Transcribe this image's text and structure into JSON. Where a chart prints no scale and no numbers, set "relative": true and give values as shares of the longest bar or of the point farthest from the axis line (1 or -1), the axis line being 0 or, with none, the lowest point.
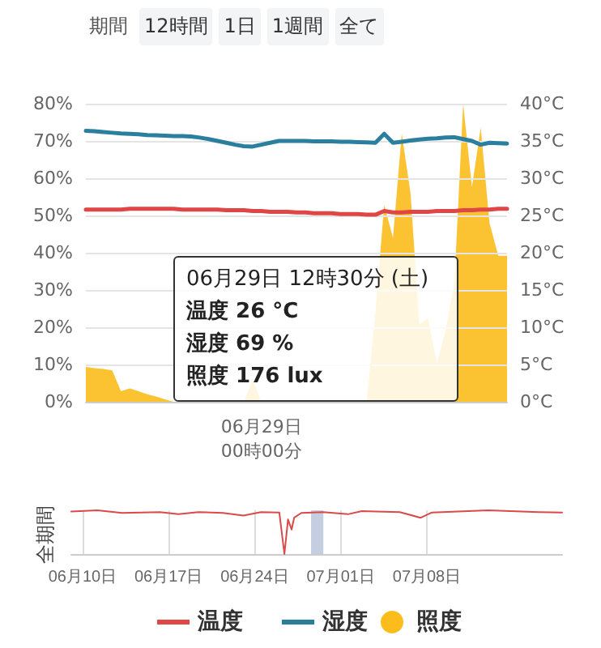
{
  "chart_data": [
    {
      "type": "line",
      "annotations": [
        "期間",
        "12時間",
        "1日",
        "1週間",
        "全て",
        "06月29日 12時30分 (土)",
        "温度 26 °C",
        "湿度 69 %",
        "照度 176 lux"
      ],
      "categories": [
        null,
        null,
        null,
        null,
        null,
        null,
        null,
        null,
        null,
        null,
        null,
        null,
        null,
        null,
        null,
        null,
        null,
        null,
        null,
        null,
        "06月29日\n00時00分",
        null,
        null,
        null,
        null,
        null,
        null,
        null,
        null,
        null,
        null,
        null,
        null,
        null,
        null,
        null,
        null,
        null,
        null,
        null,
        null,
        null,
        null,
        null,
        null,
        null,
        null,
        null,
        null
      ],
      "ylim": [
        0,
        80
      ],
      "yticks": [
        {
          "value": 0,
          "label": "0%"
        },
        {
          "value": 10,
          "label": "10%"
        },
        {
          "value": 20,
          "label": "20%"
        },
        {
          "value": 30,
          "label": "30%"
        },
        {
          "value": 40,
          "label": "40%"
        },
        {
          "value": 50,
          "label": "50%"
        },
        {
          "value": 60,
          "label": "60%"
        },
        {
          "value": 70,
          "label": "70%"
        },
        {
          "value": 80,
          "label": "80%"
        }
      ],
      "y2lim": [
        0,
        40
      ],
      "y2ticks": [
        {
          "value": 0,
          "label": "0°C"
        },
        {
          "value": 5,
          "label": "5°C"
        },
        {
          "value": 10,
          "label": "10°C"
        },
        {
          "value": 15,
          "label": "15°C"
        },
        {
          "value": 20,
          "label": "20°C"
        },
        {
          "value": 25,
          "label": "25°C"
        },
        {
          "value": 30,
          "label": "30°C"
        },
        {
          "value": 35,
          "label": "35°C"
        },
        {
          "value": 40,
          "label": "40°C"
        }
      ],
      "grid": "y",
      "legend": "bottom",
      "marker": "none",
      "line_style": "solid",
      "series": [
        {
          "name": "温度",
          "color": "#e04646",
          "axis": "y2",
          "values": [
            25.8,
            25.8,
            25.8,
            25.8,
            25.8,
            25.9,
            25.9,
            25.9,
            25.9,
            25.9,
            25.9,
            25.8,
            25.8,
            25.8,
            25.8,
            25.8,
            25.7,
            25.7,
            25.7,
            25.6,
            25.6,
            25.5,
            25.5,
            25.5,
            25.4,
            25.4,
            25.3,
            25.3,
            25.3,
            25.2,
            25.2,
            25.2,
            25.1,
            25.1,
            25.6,
            25.4,
            25.4,
            25.5,
            25.5,
            25.5,
            25.6,
            25.6,
            25.6,
            25.7,
            25.7,
            25.8,
            25.8,
            25.9,
            25.9
          ]
        },
        {
          "name": "湿度",
          "color": "#2a7f9e",
          "values": [
            72.7,
            72.6,
            72.4,
            72.2,
            72.0,
            71.9,
            71.8,
            71.6,
            71.5,
            71.4,
            71.3,
            71.3,
            71.2,
            70.9,
            70.5,
            70.0,
            69.5,
            69.0,
            68.6,
            68.5,
            69.0,
            69.5,
            70.0,
            70.0,
            70.0,
            70.0,
            69.9,
            69.9,
            69.9,
            69.8,
            69.8,
            69.7,
            69.6,
            69.5,
            71.9,
            69.5,
            69.8,
            70.1,
            70.4,
            70.6,
            70.7,
            70.9,
            71.0,
            70.5,
            70.0,
            69.0,
            69.5,
            69.4,
            69.3
          ]
        }
      ]
    },
    {
      "type": "area",
      "relative": true,
      "legend": "bottom",
      "tick_labels": false,
      "categories": [
        null,
        null,
        null,
        null,
        null,
        null,
        null,
        null,
        null,
        null,
        null,
        null,
        null,
        null,
        null,
        null,
        null,
        null,
        null,
        null,
        null,
        null,
        null,
        null,
        null,
        null,
        null,
        null,
        null,
        null,
        null,
        null,
        null,
        null,
        null,
        null,
        null,
        null,
        null,
        null,
        null,
        null,
        null,
        null,
        null,
        null,
        null,
        null,
        null
      ],
      "series": [
        {
          "name": "照度",
          "color": "#fbbc1c",
          "values": [
            0.117,
            0.113,
            0.11,
            0.105,
            0.035,
            0.045,
            0.035,
            0.025,
            0.018,
            0.008,
            0,
            0,
            0,
            0,
            0,
            0,
            0,
            0,
            0,
            0.075,
            0,
            0,
            0,
            0,
            0,
            0,
            0,
            0,
            0,
            0,
            0,
            0,
            0,
            0.3,
            0.66,
            0.55,
            0.9,
            0.7,
            0.26,
            0.28,
            0.13,
            0.24,
            0.4,
            1,
            0.72,
            0.92,
            0.6,
            0.49,
            0.49
          ]
        }
      ]
    },
    {
      "type": "line",
      "relative": true,
      "ylabel": "全期間",
      "grid": "x",
      "xlim": [
        "--06-09T02:00",
        "--07-19T00:00"
      ],
      "xticks": [
        {
          "value": "--06-10",
          "label": "06月10日"
        },
        {
          "value": "--06-17",
          "label": "06月17日"
        },
        {
          "value": "--06-24",
          "label": "06月24日"
        },
        {
          "value": "--07-01",
          "label": "07月01日"
        },
        {
          "value": "--07-08",
          "label": "07月08日"
        }
      ],
      "bands": [
        {
          "axis": "x",
          "from": "--06-28T14:00",
          "to": "--06-29T14:00",
          "color": "#b7c2da"
        }
      ],
      "series": [
        {
          "color": "#d94a4a",
          "x": [
            "--06-09T02:00",
            "--06-11T05:00",
            "--06-13T05:00",
            "--06-16T07:00",
            "--06-17T19:00",
            "--06-19T10:00",
            "--06-21T10:00",
            "--06-23T02:00",
            "--06-24T12:00",
            "--06-26T00:00",
            "--06-26T10:00",
            "--06-26T17:00",
            "--06-27T00:00",
            "--06-27T05:00",
            "--06-27T19:00",
            "--06-29T14:00",
            "--07-01T14:00",
            "--07-02T17:00",
            "--07-05T19:00",
            "--07-07T12:00",
            "--07-08T10:00",
            "--07-13T00:00",
            "--07-17T02:00",
            "--07-19T00:00"
          ],
          "values": [
            0.97,
            1,
            0.94,
            0.96,
            0.91,
            0.96,
            0.94,
            0.88,
            0.96,
            0.95,
            0,
            0.79,
            0.56,
            0.83,
            0.94,
            0.96,
            0.91,
            0.98,
            0.96,
            0.83,
            0.95,
            1,
            0.96,
            0.95
          ]
        }
      ]
    }
  ]
}
